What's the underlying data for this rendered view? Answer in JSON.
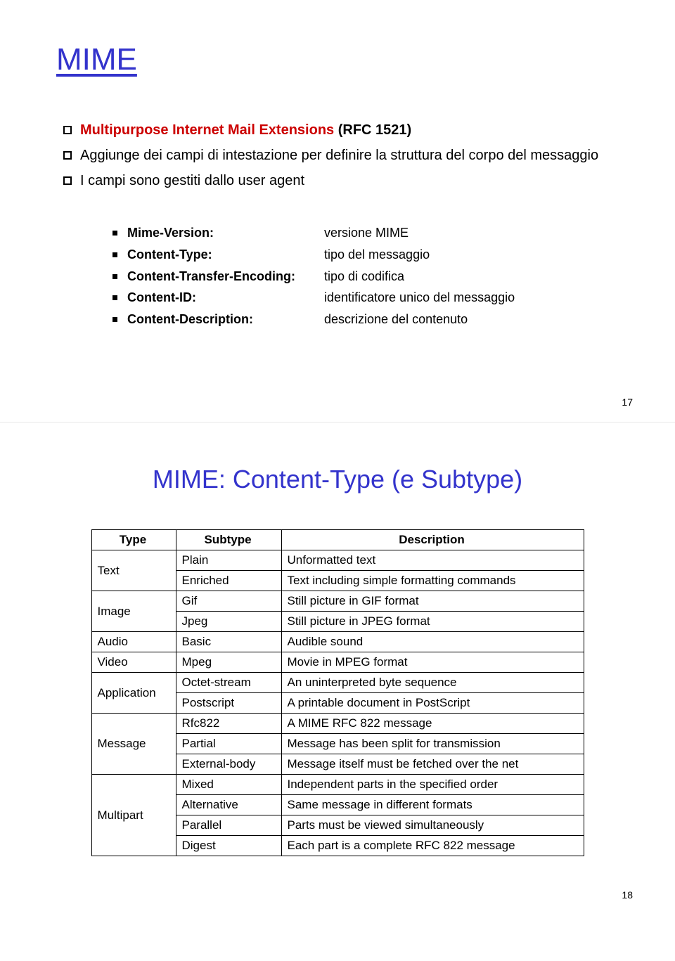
{
  "slide1": {
    "title": "MIME",
    "bullets": [
      {
        "red": "Multipurpose Internet Mail Extensions",
        "rest": " (RFC 1521)"
      },
      {
        "text": "Aggiunge dei campi di intestazione per definire la struttura del corpo del messaggio"
      },
      {
        "text": "I campi sono gestiti dallo user agent"
      }
    ],
    "fields": [
      {
        "label": "Mime-Version:",
        "value": "versione MIME"
      },
      {
        "label": "Content-Type:",
        "value": "tipo del messaggio"
      },
      {
        "label": "Content-Transfer-Encoding:",
        "value": "tipo di codifica"
      },
      {
        "label": "Content-ID:",
        "value": "identificatore unico del messaggio"
      },
      {
        "label": "Content-Description:",
        "value": "descrizione del contenuto"
      }
    ],
    "page": "17"
  },
  "slide2": {
    "title": "MIME: Content-Type (e Subtype)",
    "headers": [
      "Type",
      "Subtype",
      "Description"
    ],
    "groups": [
      {
        "type": "Text",
        "rows": [
          {
            "subtype": "Plain",
            "desc": "Unformatted text"
          },
          {
            "subtype": "Enriched",
            "desc": "Text including simple formatting commands"
          }
        ]
      },
      {
        "type": "Image",
        "rows": [
          {
            "subtype": "Gif",
            "desc": "Still picture in GIF format"
          },
          {
            "subtype": "Jpeg",
            "desc": "Still picture in JPEG format"
          }
        ]
      },
      {
        "type": "Audio",
        "rows": [
          {
            "subtype": "Basic",
            "desc": "Audible sound"
          }
        ]
      },
      {
        "type": "Video",
        "rows": [
          {
            "subtype": "Mpeg",
            "desc": "Movie in MPEG format"
          }
        ]
      },
      {
        "type": "Application",
        "rows": [
          {
            "subtype": "Octet-stream",
            "desc": "An uninterpreted byte sequence"
          },
          {
            "subtype": "Postscript",
            "desc": "A printable document in PostScript"
          }
        ]
      },
      {
        "type": "Message",
        "rows": [
          {
            "subtype": "Rfc822",
            "desc": "A MIME RFC 822 message"
          },
          {
            "subtype": "Partial",
            "desc": "Message has been split for transmission"
          },
          {
            "subtype": "External-body",
            "desc": "Message itself must be fetched over the net"
          }
        ]
      },
      {
        "type": "Multipart",
        "rows": [
          {
            "subtype": "Mixed",
            "desc": "Independent parts in the specified order"
          },
          {
            "subtype": "Alternative",
            "desc": "Same message in different formats"
          },
          {
            "subtype": "Parallel",
            "desc": "Parts must be viewed simultaneously"
          },
          {
            "subtype": "Digest",
            "desc": "Each part is a complete RFC 822 message"
          }
        ]
      }
    ],
    "page": "18"
  },
  "style": {
    "title_color": "#3333cc",
    "red_color": "#cc0000",
    "background": "#ffffff",
    "title_fontsize": 44,
    "body_fontsize": 20,
    "table_fontsize": 17
  }
}
